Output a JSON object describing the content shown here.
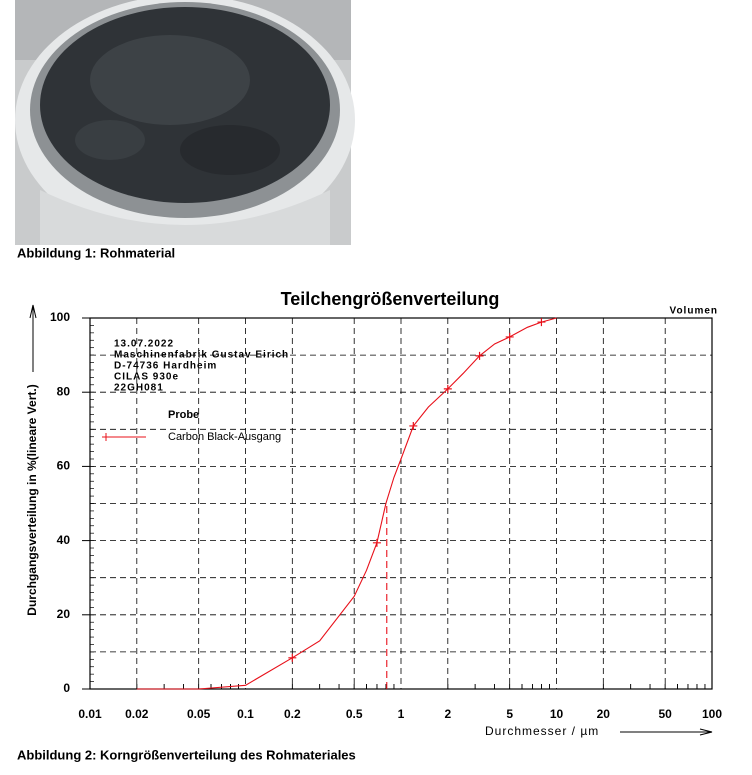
{
  "figure1": {
    "caption": "Abbildung 1: Rohmaterial"
  },
  "chart_data": {
    "type": "line",
    "title": "Teilchengrößenverteilung",
    "corner_label": "Volumen",
    "info": [
      "13.07.2022",
      "Maschinenfabrik Gustav Eirich",
      "D-74736 Hardheim",
      "CILAS 930e",
      "22GH081"
    ],
    "legend_title": "Probe",
    "x_label": "Durchmesser / µm",
    "y_label": "Durchgangsverteilung in %(lineare Vert.)",
    "log_x": true,
    "grid": true,
    "xlim": [
      0.01,
      100
    ],
    "xticks": [
      0.01,
      0.02,
      0.05,
      0.1,
      0.2,
      0.5,
      1,
      2,
      5,
      10,
      20,
      50,
      100
    ],
    "ylim": [
      0,
      100
    ],
    "yticks": [
      0,
      20,
      40,
      60,
      80,
      100
    ],
    "y_grid": [
      10,
      20,
      30,
      40,
      50,
      60,
      70,
      80,
      90
    ],
    "series": [
      {
        "name": "Carbon Black-Ausgang",
        "color": "#e8101a",
        "x": [
          0.02,
          0.05,
          0.1,
          0.2,
          0.3,
          0.5,
          0.6,
          0.7,
          0.8,
          0.9,
          1,
          1.2,
          1.5,
          2,
          2.5,
          3.2,
          4,
          5,
          6.5,
          8,
          10
        ],
        "values": [
          0,
          0,
          1,
          8.4,
          13,
          25,
          32,
          39.4,
          50,
          57,
          62,
          70.9,
          76,
          80.9,
          85,
          89.8,
          93,
          94.9,
          97.5,
          98.9,
          100
        ],
        "markers": {
          "x": [
            0.2,
            0.7,
            1.2,
            2,
            3.2,
            5,
            8
          ],
          "values": [
            8.4,
            39.4,
            70.9,
            80.9,
            89.8,
            94.9,
            98.9
          ]
        }
      }
    ],
    "reference_line": {
      "x": 0.81,
      "y": 50
    }
  },
  "figure2": {
    "caption": "Abbildung 2: Korngrößenverteilung des Rohmateriales"
  }
}
